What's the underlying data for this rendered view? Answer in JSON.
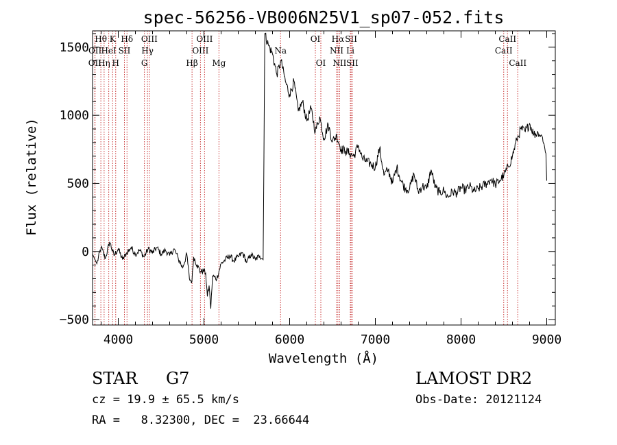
{
  "chart_data": {
    "type": "line",
    "title": "spec-56256-VB006N25V1_sp07-052.fits",
    "xlabel": "Wavelength (Å)",
    "ylabel": "Flux (relative)",
    "xlim": [
      3700,
      9100
    ],
    "ylim": [
      -540,
      1620
    ],
    "xticks": [
      4000,
      5000,
      6000,
      7000,
      8000,
      9000
    ],
    "xtick_labels": [
      "4000",
      "5000",
      "6000",
      "7000",
      "8000",
      "9000"
    ],
    "yticks": [
      -500,
      0,
      500,
      1000,
      1500
    ],
    "ytick_labels": [
      "−500",
      "0",
      "500",
      "1000",
      "1500"
    ],
    "grid": false,
    "line_color": "#000000",
    "marker_color": "#c83232",
    "series": [
      {
        "x": [
          3700,
          3750,
          3800,
          3850,
          3900,
          3950,
          4000,
          4050,
          4100,
          4150,
          4200,
          4250,
          4300,
          4350,
          4400,
          4450,
          4500,
          4550,
          4600,
          4650,
          4700,
          4750,
          4800,
          4830,
          4860,
          4880,
          4920,
          4960,
          5000,
          5020,
          5040,
          5060,
          5080,
          5100,
          5150,
          5200,
          5250,
          5300,
          5350,
          5400,
          5450,
          5500,
          5550,
          5600,
          5650,
          5690,
          5700,
          5710,
          5750,
          5800,
          5850,
          5900,
          5950,
          6000,
          6050,
          6100,
          6150,
          6200,
          6250,
          6300,
          6350,
          6400,
          6450,
          6500,
          6550,
          6600,
          6650,
          6700,
          6750,
          6800,
          6850,
          6900,
          6950,
          7000,
          7050,
          7100,
          7150,
          7200,
          7250,
          7300,
          7350,
          7400,
          7450,
          7500,
          7550,
          7600,
          7650,
          7700,
          7750,
          7800,
          7820,
          7850,
          7900,
          7950,
          8000,
          8050,
          8100,
          8150,
          8200,
          8250,
          8300,
          8350,
          8400,
          8450,
          8500,
          8550,
          8600,
          8650,
          8700,
          8750,
          8800,
          8850,
          8900,
          8950,
          8990,
          9000
        ],
        "y": [
          -20,
          -90,
          30,
          -50,
          70,
          -30,
          20,
          -60,
          -10,
          30,
          -20,
          10,
          -40,
          20,
          -10,
          30,
          -20,
          10,
          -30,
          20,
          -50,
          -120,
          -20,
          -200,
          -220,
          -40,
          -100,
          -150,
          -140,
          -160,
          -330,
          -250,
          -420,
          -180,
          -200,
          -90,
          -60,
          -30,
          -70,
          -40,
          -10,
          -80,
          -20,
          -60,
          -30,
          -60,
          700,
          1600,
          1520,
          1450,
          1300,
          1400,
          1250,
          1150,
          1250,
          1030,
          1100,
          960,
          1050,
          880,
          990,
          830,
          930,
          810,
          850,
          750,
          740,
          720,
          700,
          780,
          680,
          660,
          640,
          620,
          760,
          560,
          600,
          500,
          620,
          520,
          460,
          460,
          570,
          440,
          480,
          460,
          600,
          470,
          430,
          450,
          420,
          400,
          440,
          430,
          470,
          450,
          480,
          440,
          460,
          480,
          500,
          530,
          490,
          520,
          560,
          620,
          700,
          820,
          900,
          880,
          940,
          860,
          870,
          840,
          720,
          520
        ],
        "name": ""
      }
    ],
    "lines": [
      {
        "label": "Hθ",
        "wave": 3797,
        "row": 1
      },
      {
        "label": "OII",
        "wave": 3727,
        "row": 3
      },
      {
        "label": "OII",
        "wave": 3729,
        "row": 2
      },
      {
        "label": "Hη",
        "wave": 3835,
        "row": 3
      },
      {
        "label": "HeI",
        "wave": 3889,
        "row": 2
      },
      {
        "label": "K",
        "wave": 3934,
        "row": 1
      },
      {
        "label": "H",
        "wave": 3970,
        "row": 3
      },
      {
        "label": "SII",
        "wave": 4072,
        "row": 2
      },
      {
        "label": "Hδ",
        "wave": 4102,
        "row": 1
      },
      {
        "label": "G",
        "wave": 4305,
        "row": 3
      },
      {
        "label": "Hγ",
        "wave": 4341,
        "row": 2
      },
      {
        "label": "OIII",
        "wave": 4363,
        "row": 1
      },
      {
        "label": "Hβ",
        "wave": 4861,
        "row": 3
      },
      {
        "label": "OIII",
        "wave": 4959,
        "row": 2
      },
      {
        "label": "OIII",
        "wave": 5007,
        "row": 1
      },
      {
        "label": "Mg",
        "wave": 5175,
        "row": 3
      },
      {
        "label": "Na",
        "wave": 5894,
        "row": 2
      },
      {
        "label": "OI",
        "wave": 6300,
        "row": 1
      },
      {
        "label": "OI",
        "wave": 6364,
        "row": 3
      },
      {
        "label": "NII",
        "wave": 6548,
        "row": 2
      },
      {
        "label": "Hα",
        "wave": 6563,
        "row": 1
      },
      {
        "label": "NII",
        "wave": 6583,
        "row": 3
      },
      {
        "label": "Li",
        "wave": 6708,
        "row": 2
      },
      {
        "label": "SII",
        "wave": 6717,
        "row": 1
      },
      {
        "label": "SII",
        "wave": 6731,
        "row": 3
      },
      {
        "label": "CaII",
        "wave": 8498,
        "row": 2
      },
      {
        "label": "CaII",
        "wave": 8542,
        "row": 1
      },
      {
        "label": "CaII",
        "wave": 8662,
        "row": 3
      }
    ]
  },
  "info": {
    "class": "STAR",
    "subclass": "G7",
    "survey": "LAMOST DR2",
    "redshift": "cz = 19.9 ± 65.5 km/s",
    "obs_date": "Obs-Date: 20121124",
    "coords": "RA =   8.32300, DEC =  23.66644"
  }
}
